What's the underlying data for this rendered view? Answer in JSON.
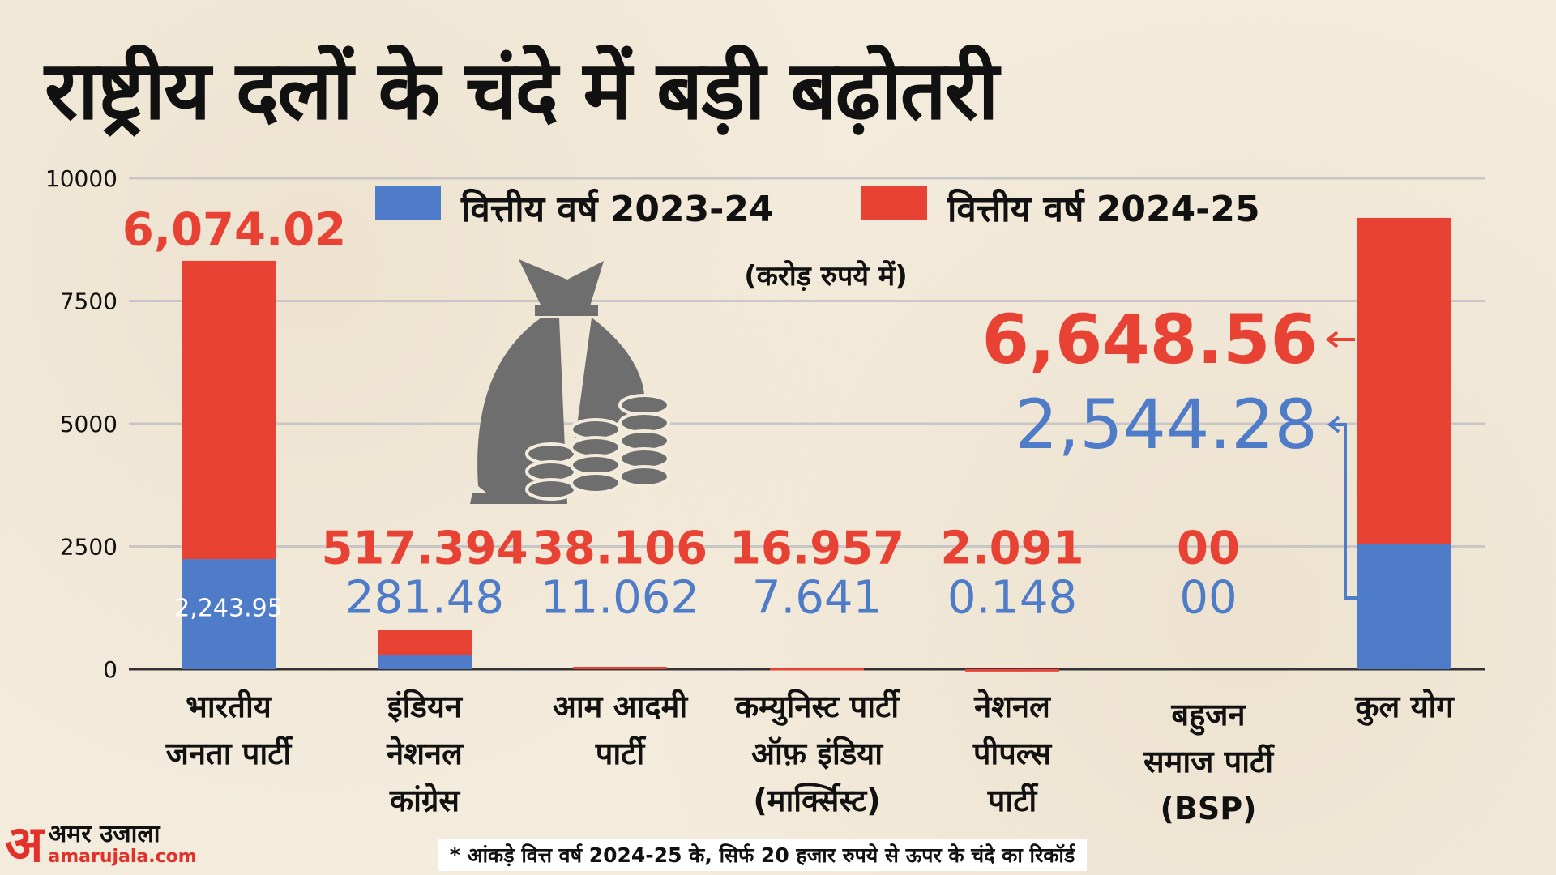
{
  "title": "राष्ट्रीय दलों के चंदे में बड़ी बढ़ोतरी",
  "subtitle": "(करोड़ रुपये में)",
  "colors": {
    "fy2324": "#4f7cc8",
    "fy2425": "#e84234",
    "background": "#f3ebdc",
    "icon": "#6e6e6e"
  },
  "icons": [
    "money-bag-icon",
    "coin-stacks-icon"
  ],
  "chart_data": {
    "type": "bar",
    "stacked": true,
    "ylim": [
      0,
      10000
    ],
    "yticks": [
      "0",
      "2500",
      "5000",
      "7500",
      "10000"
    ],
    "grid": true,
    "legend_placement": "top",
    "categories": [
      [
        "भारतीय",
        "जनता पार्टी"
      ],
      [
        "इंडियन",
        "नेशनल",
        "कांग्रेस"
      ],
      [
        "आम आदमी",
        "पार्टी"
      ],
      [
        "कम्युनिस्ट पार्टी",
        "ऑफ़ इंडिया",
        "(मार्क्सिस्ट)"
      ],
      [
        "नेशनल",
        "पीपल्स",
        "पार्टी"
      ],
      [
        "बहुजन",
        "समाज पार्टी",
        "(BSP)"
      ],
      [
        "कुल योग"
      ]
    ],
    "series": [
      {
        "name": "वित्तीय वर्ष 2023-24",
        "values": [
          2243.95,
          281.48,
          11.062,
          7.641,
          0.148,
          0,
          2544.28
        ],
        "labels": [
          "2,243.95",
          "281.48",
          "11.062",
          "7.641",
          "0.148",
          "00",
          "2,544.28"
        ]
      },
      {
        "name": "वित्तीय वर्ष 2024-25",
        "values": [
          6074.02,
          517.394,
          38.106,
          16.957,
          2.091,
          0,
          6648.56
        ],
        "labels": [
          "6,074.02",
          "517.394",
          "38.106",
          "16.957",
          "2.091",
          "00",
          "6,648.56"
        ]
      }
    ]
  },
  "footer": {
    "logo_mark": "अ",
    "logo_name": "अमर उजाला",
    "logo_url": "amarujala.com",
    "note": "* आंकड़े वित्त वर्ष 2024-25 के, सिर्फ 20 हजार रुपये से ऊपर के चंदे का रिकॉर्ड"
  }
}
